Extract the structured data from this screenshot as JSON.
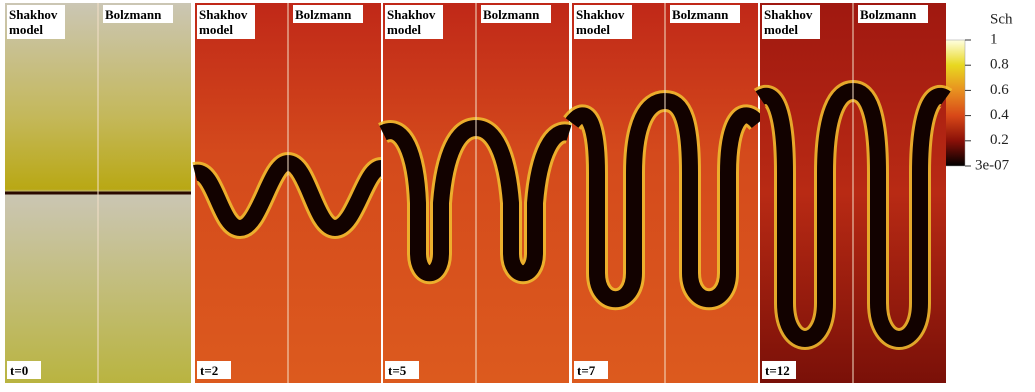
{
  "panels": [
    {
      "left_label": "Shakhov model",
      "right_label": "Bolzmann",
      "time": "t=0"
    },
    {
      "left_label": "Shakhov model",
      "right_label": "Bolzmann",
      "time": "t=2"
    },
    {
      "left_label": "Shakhov model",
      "right_label": "Bolzmann",
      "time": "t=5"
    },
    {
      "left_label": "Shakhov model",
      "right_label": "Bolzmann",
      "time": "t=7"
    },
    {
      "left_label": "Shakhov model",
      "right_label": "Bolzmann",
      "time": "t=12"
    }
  ],
  "colorbar": {
    "title": "Sch",
    "ticks": [
      "1",
      "0.8",
      "0.6",
      "0.4",
      "0.2",
      "3e-07"
    ]
  }
}
